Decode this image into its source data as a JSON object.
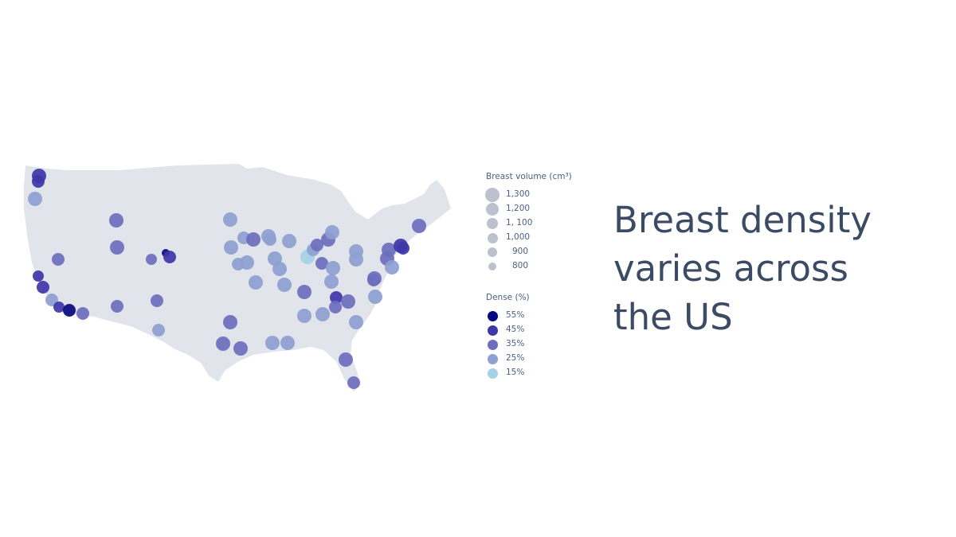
{
  "headline": {
    "line1": "Breast density",
    "line2": "varies across",
    "line3": "the US"
  },
  "legend": {
    "volume_title": "Breast volume (cm³)",
    "volume_items": [
      {
        "label": "1,300",
        "size": 1300
      },
      {
        "label": "1,200",
        "size": 1200
      },
      {
        "label": "1, 100",
        "size": 1100
      },
      {
        "label": "1,000",
        "size": 1000
      },
      {
        "label": "900",
        "size": 900
      },
      {
        "label": "800",
        "size": 800
      }
    ],
    "density_title": "Dense (%)",
    "density_items": [
      {
        "label": "55%",
        "dense": 55,
        "color": "#07077f"
      },
      {
        "label": "45%",
        "dense": 45,
        "color": "#3f36a8"
      },
      {
        "label": "35%",
        "dense": 35,
        "color": "#6c6ebd"
      },
      {
        "label": "25%",
        "dense": 25,
        "color": "#8ea0d0"
      },
      {
        "label": "15%",
        "dense": 15,
        "color": "#a6d1e6"
      }
    ]
  },
  "map": {
    "land_color": "#e2e4ec",
    "volume_swatch_color": "#bcc1ce"
  }
}
